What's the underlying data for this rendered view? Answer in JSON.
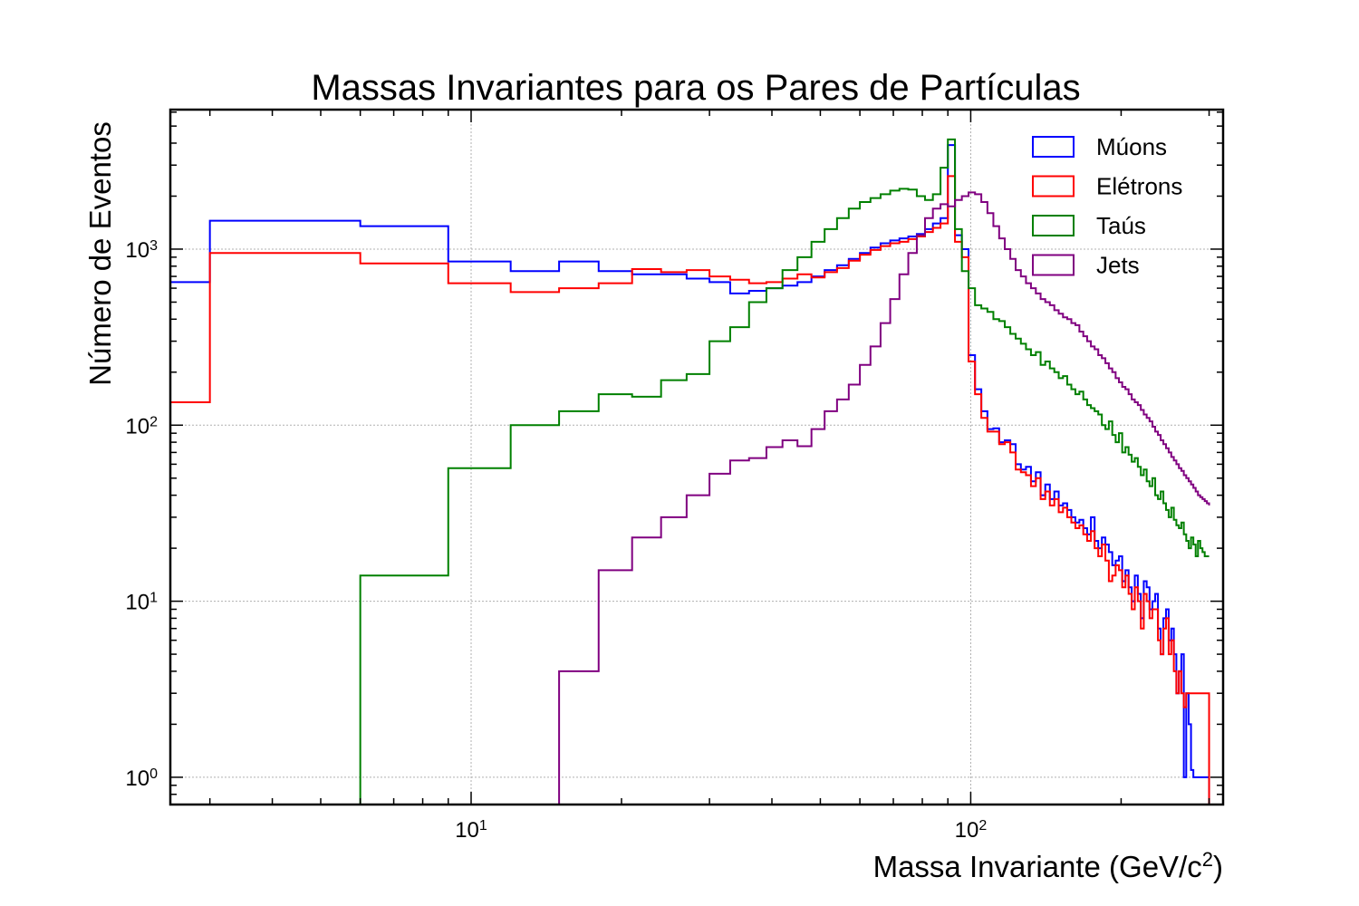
{
  "chart_data": {
    "type": "histogram-step",
    "title": "Massas Invariantes para os Pares de Partículas",
    "xlabel_text": "Massa Invariante (GeV/c",
    "xlabel_sup": "2",
    "xlabel_close": ")",
    "ylabel": "Número de Eventos",
    "x_scale": "log",
    "y_scale": "log",
    "xlim": [
      2.5,
      320
    ],
    "ylim": [
      0.7,
      6200
    ],
    "grid": true,
    "legend_position": "top-right",
    "x_ticks": [
      {
        "value": 10,
        "base": "10",
        "exp": "1"
      },
      {
        "value": 100,
        "base": "10",
        "exp": "2"
      }
    ],
    "y_ticks": [
      {
        "value": 1,
        "base": "10",
        "exp": "0"
      },
      {
        "value": 10,
        "base": "10",
        "exp": "1"
      },
      {
        "value": 100,
        "base": "10",
        "exp": "2"
      },
      {
        "value": 1000,
        "base": "10",
        "exp": "3"
      }
    ],
    "series": [
      {
        "name": "Múons",
        "color": "#0000ff",
        "edges": [
          2,
          3,
          6,
          9,
          12,
          15,
          18,
          21,
          24,
          27,
          30,
          33,
          36,
          39,
          42,
          45,
          48,
          51,
          54,
          57,
          60,
          63,
          66,
          69,
          72,
          75,
          78,
          81,
          84,
          87,
          90,
          93,
          96,
          99,
          102,
          105,
          108,
          111,
          114,
          117,
          120,
          123,
          126,
          129,
          132,
          135,
          138,
          141,
          144,
          147,
          150,
          153,
          156,
          159,
          162,
          165,
          168,
          171,
          174,
          177,
          180,
          183,
          186,
          189,
          192,
          195,
          198,
          201,
          204,
          207,
          210,
          213,
          216,
          219,
          222,
          225,
          228,
          231,
          234,
          237,
          240,
          243,
          246,
          249,
          252,
          255,
          258,
          261,
          264,
          267,
          270,
          273,
          276,
          279,
          282,
          285,
          288,
          291,
          294,
          297,
          300
        ],
        "counts": [
          650,
          1450,
          1350,
          850,
          750,
          850,
          750,
          720,
          720,
          680,
          650,
          560,
          580,
          600,
          620,
          650,
          700,
          760,
          810,
          880,
          950,
          1020,
          1080,
          1120,
          1150,
          1180,
          1220,
          1300,
          1400,
          1500,
          3900,
          1200,
          1000,
          250,
          160,
          120,
          95,
          96,
          80,
          82,
          78,
          60,
          56,
          58,
          48,
          54,
          40,
          46,
          38,
          42,
          35,
          36,
          33,
          30,
          28,
          29,
          26,
          24,
          30,
          22,
          20,
          23,
          21,
          19,
          16,
          17,
          18,
          13,
          15,
          12,
          10,
          14,
          11,
          8,
          13,
          12,
          9,
          10,
          11,
          7,
          5,
          8,
          9,
          6,
          7,
          5,
          3,
          4,
          5,
          1,
          3,
          2,
          1.1,
          1,
          1,
          1,
          1,
          1,
          1,
          1
        ],
        "truncate": 90
      },
      {
        "name": "Elétrons",
        "color": "#ff0000",
        "edges": [
          2,
          3,
          6,
          9,
          12,
          15,
          18,
          21,
          24,
          27,
          30,
          33,
          36,
          39,
          42,
          45,
          48,
          51,
          54,
          57,
          60,
          63,
          66,
          69,
          72,
          75,
          78,
          81,
          84,
          87,
          90,
          93,
          96,
          99,
          102,
          105,
          108,
          111,
          114,
          117,
          120,
          123,
          126,
          129,
          132,
          135,
          138,
          141,
          144,
          147,
          150,
          153,
          156,
          159,
          162,
          165,
          168,
          171,
          174,
          177,
          180,
          183,
          186,
          189,
          192,
          195,
          198,
          201,
          204,
          207,
          210,
          213,
          216,
          219,
          222,
          225,
          228,
          231,
          234,
          237,
          240,
          243,
          246,
          249,
          252,
          255,
          258,
          261,
          264,
          267,
          270,
          273,
          276,
          279,
          282,
          285,
          288,
          291,
          294,
          297,
          300
        ],
        "counts": [
          135,
          950,
          830,
          640,
          570,
          600,
          640,
          770,
          740,
          760,
          700,
          670,
          640,
          650,
          680,
          720,
          690,
          740,
          780,
          860,
          930,
          990,
          1040,
          1080,
          1100,
          1140,
          1180,
          1250,
          1320,
          1400,
          2600,
          1100,
          900,
          230,
          150,
          110,
          92,
          92,
          78,
          80,
          70,
          56,
          54,
          52,
          45,
          50,
          38,
          42,
          35,
          38,
          32,
          34,
          30,
          28,
          26,
          27,
          24,
          22,
          25,
          20,
          18,
          21,
          17,
          13,
          14,
          16,
          15,
          12,
          14,
          11,
          9,
          12,
          10,
          7,
          11,
          10,
          8,
          9,
          9,
          6,
          5,
          7,
          8,
          5,
          6,
          4,
          3,
          4,
          3,
          2.5,
          3,
          3,
          3,
          3,
          3,
          3,
          3,
          3,
          3,
          3
        ],
        "truncate": 90
      },
      {
        "name": "Taús",
        "color": "#008000",
        "edges": [
          6,
          9,
          12,
          15,
          18,
          21,
          24,
          27,
          30,
          33,
          36,
          39,
          42,
          45,
          48,
          51,
          54,
          57,
          60,
          63,
          66,
          69,
          72,
          75,
          78,
          81,
          84,
          87,
          90,
          93,
          96,
          99,
          102,
          105,
          108,
          111,
          114,
          117,
          120,
          123,
          126,
          129,
          132,
          135,
          138,
          141,
          144,
          147,
          150,
          153,
          156,
          159,
          162,
          165,
          168,
          171,
          174,
          177,
          180,
          183,
          186,
          189,
          192,
          195,
          198,
          201,
          204,
          207,
          210,
          213,
          216,
          219,
          222,
          225,
          228,
          231,
          234,
          237,
          240,
          243,
          246,
          249,
          252,
          255,
          258,
          261,
          264,
          267,
          270,
          273,
          276,
          279,
          282,
          285,
          288,
          291,
          294,
          297,
          300
        ],
        "counts": [
          14,
          57,
          100,
          120,
          150,
          145,
          180,
          195,
          300,
          360,
          500,
          600,
          760,
          900,
          1100,
          1300,
          1500,
          1700,
          1850,
          1950,
          2050,
          2150,
          2200,
          2180,
          2000,
          1900,
          2050,
          2900,
          4200,
          1300,
          750,
          600,
          480,
          460,
          440,
          400,
          390,
          360,
          330,
          310,
          290,
          270,
          250,
          260,
          220,
          230,
          210,
          200,
          185,
          190,
          170,
          160,
          150,
          155,
          140,
          130,
          125,
          120,
          115,
          100,
          95,
          105,
          88,
          80,
          90,
          70,
          75,
          68,
          62,
          65,
          58,
          52,
          56,
          48,
          45,
          50,
          40,
          38,
          42,
          36,
          33,
          30,
          34,
          29,
          27,
          26,
          28,
          24,
          22,
          20,
          23,
          21,
          18,
          22,
          20,
          19,
          18,
          18,
          18
        ],
        "truncate": 60
      },
      {
        "name": "Jets",
        "color": "#800080",
        "edges": [
          15,
          18,
          21,
          24,
          27,
          30,
          33,
          36,
          39,
          42,
          45,
          48,
          51,
          54,
          57,
          60,
          63,
          66,
          69,
          72,
          75,
          78,
          81,
          84,
          87,
          90,
          93,
          96,
          99,
          102,
          105,
          108,
          111,
          114,
          117,
          120,
          123,
          126,
          129,
          132,
          135,
          138,
          141,
          144,
          147,
          150,
          153,
          156,
          159,
          162,
          165,
          168,
          171,
          174,
          177,
          180,
          183,
          186,
          189,
          192,
          195,
          198,
          201,
          204,
          207,
          210,
          213,
          216,
          219,
          222,
          225,
          228,
          231,
          234,
          237,
          240,
          243,
          246,
          249,
          252,
          255,
          258,
          261,
          264,
          267,
          270,
          273,
          276,
          279,
          282,
          285,
          288,
          291,
          294,
          297,
          300
        ],
        "counts": [
          4,
          15,
          23,
          30,
          40,
          53,
          63,
          65,
          75,
          82,
          76,
          95,
          120,
          140,
          170,
          220,
          280,
          380,
          520,
          720,
          950,
          1200,
          1500,
          1700,
          1800,
          1750,
          1900,
          2000,
          2100,
          2050,
          1850,
          1600,
          1350,
          1150,
          1000,
          880,
          760,
          700,
          640,
          600,
          560,
          520,
          500,
          480,
          450,
          430,
          410,
          400,
          380,
          370,
          340,
          320,
          300,
          280,
          270,
          250,
          240,
          225,
          210,
          200,
          185,
          175,
          165,
          160,
          150,
          140,
          135,
          130,
          122,
          115,
          110,
          105,
          98,
          92,
          88,
          82,
          78,
          74,
          70,
          66,
          63,
          60,
          57,
          55,
          52,
          50,
          48,
          46,
          44,
          42,
          40,
          39,
          38,
          37,
          36,
          35
        ],
        "truncate": 47
      }
    ]
  }
}
